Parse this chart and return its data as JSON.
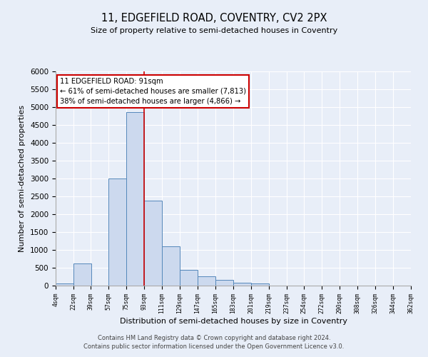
{
  "title": "11, EDGEFIELD ROAD, COVENTRY, CV2 2PX",
  "subtitle": "Size of property relative to semi-detached houses in Coventry",
  "xlabel": "Distribution of semi-detached houses by size in Coventry",
  "ylabel": "Number of semi-detached properties",
  "bar_left_edges": [
    4,
    22,
    39,
    57,
    75,
    93,
    111,
    129,
    147,
    165,
    183,
    201,
    219,
    237,
    254,
    272,
    290,
    308,
    326,
    344
  ],
  "bar_heights": [
    60,
    620,
    0,
    3000,
    4870,
    2390,
    1100,
    450,
    260,
    155,
    90,
    60,
    0,
    0,
    0,
    0,
    0,
    0,
    0,
    0
  ],
  "bin_width": 18,
  "bar_color": "#ccd9ee",
  "bar_edge_color": "#5588bb",
  "property_line_x": 93,
  "property_sqm": 91,
  "annotation_title": "11 EDGEFIELD ROAD: 91sqm",
  "annotation_line1": "← 61% of semi-detached houses are smaller (7,813)",
  "annotation_line2": "38% of semi-detached houses are larger (4,866) →",
  "annotation_box_facecolor": "#ffffff",
  "annotation_box_edgecolor": "#cc0000",
  "vline_color": "#cc0000",
  "ylim": [
    0,
    6000
  ],
  "yticks": [
    0,
    500,
    1000,
    1500,
    2000,
    2500,
    3000,
    3500,
    4000,
    4500,
    5000,
    5500,
    6000
  ],
  "xtick_labels": [
    "4sqm",
    "22sqm",
    "39sqm",
    "57sqm",
    "75sqm",
    "93sqm",
    "111sqm",
    "129sqm",
    "147sqm",
    "165sqm",
    "183sqm",
    "201sqm",
    "219sqm",
    "237sqm",
    "254sqm",
    "272sqm",
    "290sqm",
    "308sqm",
    "326sqm",
    "344sqm",
    "362sqm"
  ],
  "footer_line1": "Contains HM Land Registry data © Crown copyright and database right 2024.",
  "footer_line2": "Contains public sector information licensed under the Open Government Licence v3.0.",
  "background_color": "#e8eef8",
  "grid_color": "#ffffff"
}
